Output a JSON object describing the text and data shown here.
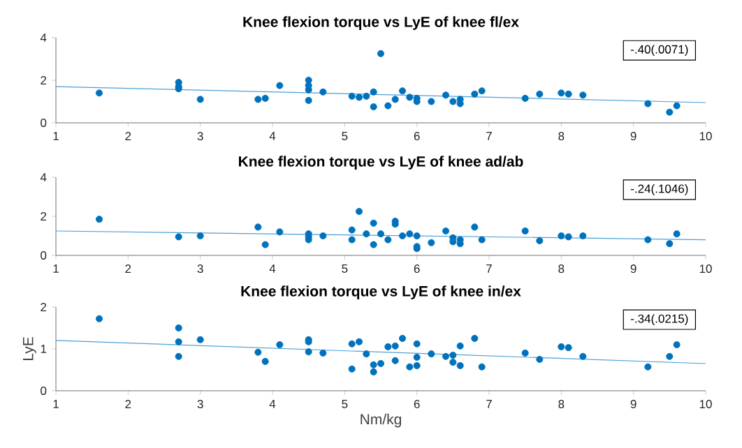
{
  "chart_data": [
    {
      "type": "scatter",
      "title": "Knee flexion torque vs  LyE of knee fl/ex",
      "annotations": [
        "-.40(.0071)"
      ],
      "xlim": [
        1,
        10
      ],
      "xticks": [
        1,
        2,
        3,
        4,
        5,
        6,
        7,
        8,
        9,
        10
      ],
      "ylim": [
        0,
        4
      ],
      "yticks": [
        0,
        2,
        4
      ],
      "series": [
        {
          "type": "scatter",
          "marker": "circle",
          "color": "#0072bd",
          "x": [
            1.6,
            2.7,
            2.7,
            2.7,
            3.0,
            3.8,
            3.9,
            4.1,
            4.5,
            4.5,
            4.5,
            4.5,
            4.7,
            5.1,
            5.2,
            5.3,
            5.4,
            5.4,
            5.5,
            5.6,
            5.7,
            5.8,
            5.9,
            6.0,
            6.0,
            6.2,
            6.4,
            6.5,
            6.6,
            6.6,
            6.8,
            6.9,
            7.5,
            7.7,
            8.0,
            8.1,
            8.3,
            9.2,
            9.5,
            9.6
          ],
          "values": [
            1.4,
            1.9,
            1.7,
            1.6,
            1.1,
            1.1,
            1.15,
            1.75,
            2.0,
            1.75,
            1.55,
            1.05,
            1.45,
            1.25,
            1.2,
            1.25,
            1.45,
            0.75,
            3.25,
            0.8,
            1.1,
            1.5,
            1.2,
            1.0,
            1.15,
            1.0,
            1.3,
            1.0,
            0.9,
            1.1,
            1.35,
            1.5,
            1.15,
            1.35,
            1.4,
            1.35,
            1.3,
            0.9,
            0.5,
            0.8
          ]
        },
        {
          "type": "line",
          "color": "#4a9fd8",
          "x": [
            1,
            10
          ],
          "values": [
            1.7,
            0.95
          ]
        }
      ]
    },
    {
      "type": "scatter",
      "title": "Knee flexion torque vs  LyE of knee ad/ab",
      "annotations": [
        "-.24(.1046)"
      ],
      "xlim": [
        1,
        10
      ],
      "xticks": [
        1,
        2,
        3,
        4,
        5,
        6,
        7,
        8,
        9,
        10
      ],
      "ylim": [
        0,
        4
      ],
      "yticks": [
        0,
        2,
        4
      ],
      "series": [
        {
          "type": "scatter",
          "marker": "circle",
          "color": "#0072bd",
          "x": [
            1.6,
            2.7,
            3.0,
            3.8,
            3.9,
            4.1,
            4.5,
            4.5,
            4.5,
            4.7,
            5.1,
            5.1,
            5.2,
            5.3,
            5.4,
            5.4,
            5.5,
            5.6,
            5.7,
            5.7,
            5.8,
            5.9,
            6.0,
            6.0,
            6.0,
            6.2,
            6.4,
            6.5,
            6.5,
            6.6,
            6.6,
            6.8,
            6.9,
            7.5,
            7.7,
            8.0,
            8.1,
            8.3,
            9.2,
            9.5,
            9.6
          ],
          "values": [
            1.85,
            0.95,
            1.0,
            1.45,
            0.55,
            1.2,
            1.1,
            0.95,
            0.8,
            1.0,
            1.3,
            0.8,
            2.25,
            1.1,
            1.65,
            0.55,
            1.1,
            0.8,
            1.75,
            1.6,
            1.0,
            1.1,
            1.0,
            0.45,
            0.35,
            0.65,
            1.25,
            0.9,
            0.7,
            0.8,
            0.6,
            1.45,
            0.8,
            1.25,
            0.75,
            1.0,
            0.95,
            1.0,
            0.8,
            0.6,
            1.1
          ]
        },
        {
          "type": "line",
          "color": "#4a9fd8",
          "x": [
            1,
            10
          ],
          "values": [
            1.25,
            0.8
          ]
        }
      ]
    },
    {
      "type": "scatter",
      "title": "Knee flexion torque vs  LyE of knee in/ex",
      "xlabel": "Nm/kg",
      "ylabel": "LyE",
      "annotations": [
        "-.34(.0215)"
      ],
      "xlim": [
        1,
        10
      ],
      "xticks": [
        1,
        2,
        3,
        4,
        5,
        6,
        7,
        8,
        9,
        10
      ],
      "ylim": [
        0,
        2
      ],
      "yticks": [
        0,
        1,
        2
      ],
      "series": [
        {
          "type": "scatter",
          "marker": "circle",
          "color": "#0072bd",
          "x": [
            1.6,
            2.7,
            2.7,
            2.7,
            3.0,
            3.8,
            3.9,
            4.1,
            4.5,
            4.5,
            4.5,
            4.7,
            5.1,
            5.1,
            5.2,
            5.3,
            5.4,
            5.4,
            5.5,
            5.6,
            5.7,
            5.7,
            5.8,
            5.9,
            6.0,
            6.0,
            6.0,
            6.2,
            6.4,
            6.5,
            6.5,
            6.6,
            6.6,
            6.8,
            6.9,
            7.5,
            7.7,
            8.0,
            8.1,
            8.3,
            9.2,
            9.5,
            9.6
          ],
          "values": [
            1.72,
            1.5,
            1.17,
            0.82,
            1.22,
            0.92,
            0.7,
            1.1,
            1.22,
            1.17,
            0.93,
            0.9,
            1.12,
            0.52,
            1.17,
            0.88,
            0.62,
            0.45,
            0.65,
            1.05,
            1.07,
            0.72,
            1.25,
            0.57,
            1.12,
            0.8,
            0.6,
            0.88,
            0.82,
            0.85,
            0.68,
            1.07,
            0.6,
            1.25,
            0.57,
            0.9,
            0.75,
            1.05,
            1.03,
            0.82,
            0.57,
            0.82,
            1.1
          ]
        },
        {
          "type": "line",
          "color": "#4a9fd8",
          "x": [
            1,
            10
          ],
          "values": [
            1.2,
            0.65
          ]
        }
      ]
    }
  ]
}
